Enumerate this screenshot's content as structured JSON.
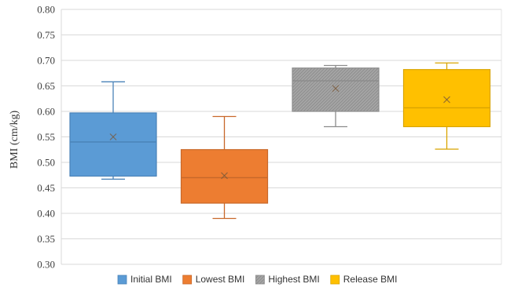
{
  "chart_data": {
    "type": "box",
    "ylabel": "BMI (cm/kg)",
    "ylim": [
      0.3,
      0.8
    ],
    "yticks": [
      "0.30",
      "0.35",
      "0.40",
      "0.45",
      "0.50",
      "0.55",
      "0.60",
      "0.65",
      "0.70",
      "0.75",
      "0.80"
    ],
    "grid": true,
    "legend_position": "bottom",
    "series": [
      {
        "name": "Initial BMI",
        "color": "#5B9BD5",
        "edge": "#4A83B8",
        "min": 0.467,
        "q1": 0.473,
        "median": 0.54,
        "q3": 0.597,
        "max": 0.658,
        "mean": 0.55,
        "hatch": false
      },
      {
        "name": "Lowest BMI",
        "color": "#ED7D31",
        "edge": "#C8682A",
        "min": 0.39,
        "q1": 0.42,
        "median": 0.47,
        "q3": 0.525,
        "max": 0.59,
        "mean": 0.474,
        "hatch": false
      },
      {
        "name": "Highest BMI",
        "color": "#A5A5A5",
        "edge": "#8C8C8C",
        "min": 0.57,
        "q1": 0.6,
        "median": 0.66,
        "q3": 0.685,
        "max": 0.69,
        "mean": 0.645,
        "hatch": true
      },
      {
        "name": "Release BMI",
        "color": "#FFC000",
        "edge": "#D9A400",
        "min": 0.526,
        "q1": 0.57,
        "median": 0.607,
        "q3": 0.682,
        "max": 0.695,
        "mean": 0.623,
        "hatch": false
      }
    ]
  }
}
